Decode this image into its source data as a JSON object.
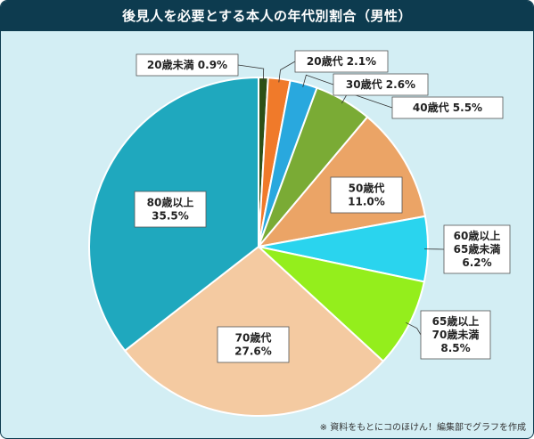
{
  "chart_data": {
    "type": "pie",
    "title": "後見人を必要とする本人の年代別割合（男性）",
    "start_angle_deg": 0,
    "direction": "clockwise",
    "slices": [
      {
        "label_lines": [
          "20歳未満 0.9%"
        ],
        "value": 0.9,
        "color": "#2d5016"
      },
      {
        "label_lines": [
          "20歳代 2.1%"
        ],
        "value": 2.1,
        "color": "#f07a2a"
      },
      {
        "label_lines": [
          "30歳代 2.6%"
        ],
        "value": 2.6,
        "color": "#29a8de"
      },
      {
        "label_lines": [
          "40歳代 5.5%"
        ],
        "value": 5.5,
        "color": "#7aab35"
      },
      {
        "label_lines": [
          "50歳代",
          "11.0%"
        ],
        "value": 11.0,
        "color": "#eba466"
      },
      {
        "label_lines": [
          "60歳以上",
          "65歳未満",
          "6.2%"
        ],
        "value": 6.2,
        "color": "#2ad4ee"
      },
      {
        "label_lines": [
          "65歳以上",
          "70歳未満",
          "8.5%"
        ],
        "value": 8.5,
        "color": "#94ee1c"
      },
      {
        "label_lines": [
          "70歳代",
          "27.6%"
        ],
        "value": 27.6,
        "color": "#f4caa1"
      },
      {
        "label_lines": [
          "80歳以上",
          "35.5%"
        ],
        "value": 35.5,
        "color": "#1fa8be"
      }
    ]
  },
  "footnote": "※ 資料をもとにコのほけん！編集部でグラフを作成"
}
